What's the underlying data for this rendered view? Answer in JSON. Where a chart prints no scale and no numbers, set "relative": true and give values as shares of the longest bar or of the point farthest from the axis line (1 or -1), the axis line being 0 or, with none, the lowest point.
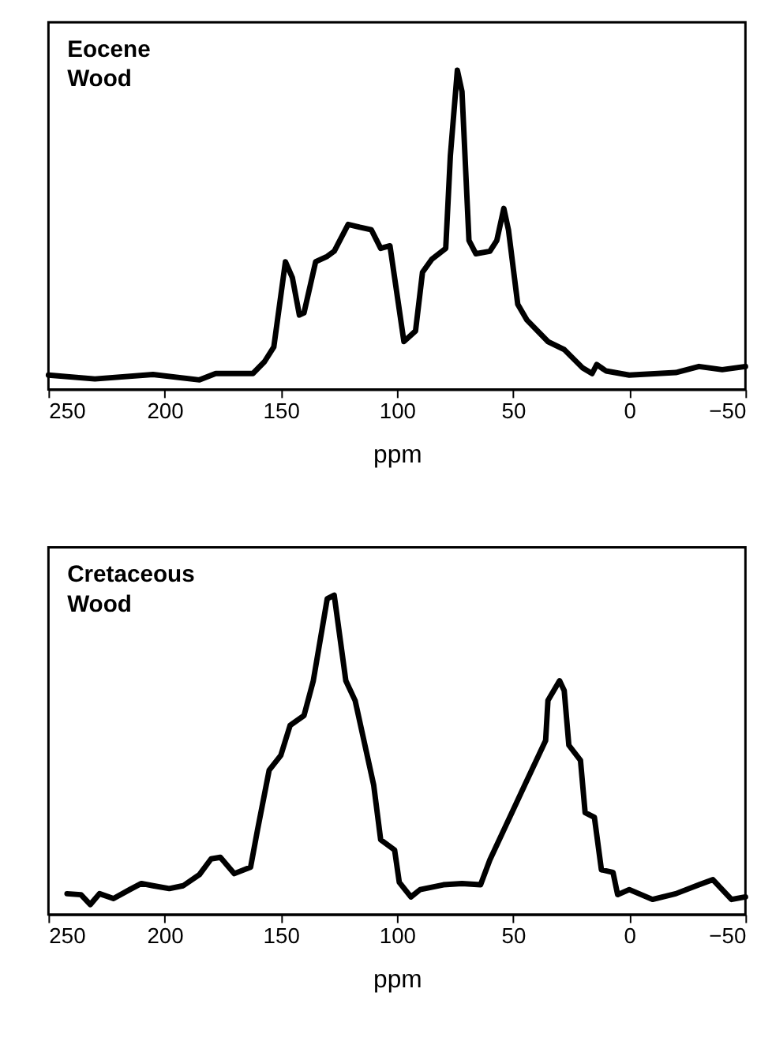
{
  "chart_data": [
    {
      "type": "line",
      "title": "Eocene Wood",
      "xlabel": "ppm",
      "relative": true,
      "xlim": [
        250,
        -50
      ],
      "xticks": [
        250,
        200,
        150,
        100,
        50,
        0,
        -50
      ],
      "tick_labels": "x",
      "grid": false,
      "marker": "none",
      "line_style": "solid",
      "series": [
        {
          "color": "#000000",
          "x": [
            250,
            230,
            205,
            185,
            178,
            162,
            157,
            153,
            148,
            145,
            142,
            140,
            135,
            130,
            127,
            121,
            116,
            111,
            107,
            103,
            97,
            92,
            89,
            85,
            79,
            77,
            74,
            72,
            69,
            66,
            60,
            57,
            54,
            52,
            48,
            44,
            35,
            28,
            20,
            16,
            14,
            10,
            0,
            -20,
            -30,
            -40,
            -50
          ],
          "values": [
            0.045,
            0.033,
            0.047,
            0.03,
            0.05,
            0.05,
            0.087,
            0.133,
            0.4,
            0.35,
            0.233,
            0.24,
            0.4,
            0.417,
            0.433,
            0.517,
            0.508,
            0.5,
            0.442,
            0.45,
            0.15,
            0.183,
            0.367,
            0.408,
            0.442,
            0.733,
            1.0,
            0.933,
            0.467,
            0.425,
            0.433,
            0.467,
            0.567,
            0.5,
            0.267,
            0.217,
            0.15,
            0.125,
            0.067,
            0.05,
            0.078,
            0.058,
            0.045,
            0.053,
            0.072,
            0.062,
            0.072
          ]
        }
      ]
    },
    {
      "type": "line",
      "title": "Cretaceous Wood",
      "xlabel": "ppm",
      "relative": true,
      "xlim": [
        250,
        -50
      ],
      "xticks": [
        250,
        200,
        150,
        100,
        50,
        0,
        -50
      ],
      "tick_labels": "x",
      "grid": false,
      "marker": "none",
      "line_style": "solid",
      "series": [
        {
          "color": "#000000",
          "x": [
            242,
            236,
            232,
            228,
            222,
            215,
            210,
            205,
            198,
            192,
            185,
            180,
            176,
            170,
            163,
            160,
            155,
            150,
            146,
            140,
            136,
            130,
            127,
            122,
            118,
            110,
            107,
            101,
            99,
            94,
            90,
            80,
            72,
            64,
            60,
            45,
            36,
            35,
            30,
            28,
            26,
            21,
            19,
            15,
            12,
            7,
            5,
            0,
            -10,
            -20,
            -30,
            -36,
            -40,
            -44,
            -50
          ],
          "values": [
            0.065,
            0.062,
            0.031,
            0.065,
            0.05,
            0.078,
            0.097,
            0.09,
            0.081,
            0.09,
            0.125,
            0.174,
            0.179,
            0.128,
            0.148,
            0.265,
            0.452,
            0.498,
            0.592,
            0.623,
            0.732,
            0.989,
            1.0,
            0.732,
            0.67,
            0.405,
            0.234,
            0.202,
            0.101,
            0.055,
            0.078,
            0.093,
            0.097,
            0.093,
            0.171,
            0.405,
            0.545,
            0.67,
            0.732,
            0.701,
            0.53,
            0.483,
            0.319,
            0.304,
            0.14,
            0.132,
            0.062,
            0.078,
            0.047,
            0.065,
            0.093,
            0.109,
            0.078,
            0.047,
            0.055
          ]
        }
      ]
    }
  ]
}
